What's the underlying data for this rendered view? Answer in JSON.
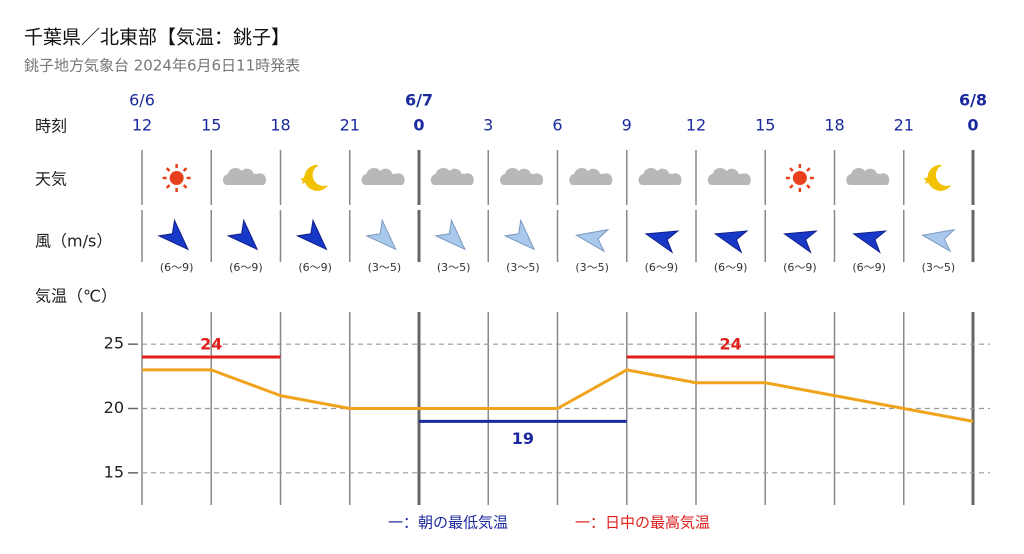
{
  "chart_data": {
    "type": "line",
    "title": "千葉県／北東部【気温：銚子】",
    "subtitle": "銚子地方気象台 2024年6月6日11時発表",
    "row_labels": [
      "時刻",
      "天気",
      "風（m/s）",
      "気温（℃）"
    ],
    "categories": [
      "12",
      "15",
      "18",
      "21",
      "0",
      "3",
      "6",
      "9",
      "12",
      "15",
      "18",
      "21",
      "0"
    ],
    "dates": [
      "6/6",
      null,
      null,
      null,
      "6/7",
      null,
      null,
      null,
      null,
      null,
      null,
      null,
      "6/8"
    ],
    "wind_labels": [
      "(6〜9)",
      "(6〜9)",
      "(6〜9)",
      "(3〜5)",
      "(3〜5)",
      "(3〜5)",
      "(3〜5)",
      "(6〜9)",
      "(6〜9)",
      "(6〜9)",
      "(6〜9)",
      "(3〜5)"
    ],
    "series": [
      {
        "color": "#f0a41e",
        "values": [
          23,
          23,
          21,
          20,
          20,
          20,
          20,
          23,
          22,
          22,
          21,
          20,
          19
        ]
      },
      {
        "name": "一：朝の最低気温",
        "color": "#1c28a0",
        "values": [
          null,
          null,
          null,
          null,
          19,
          19,
          19,
          19,
          null,
          null,
          null,
          null,
          null
        ]
      },
      {
        "name": "一：日中の最高気温",
        "color": "#e0201c",
        "values": [
          24,
          24,
          24,
          null,
          null,
          null,
          null,
          24,
          24,
          24,
          24,
          null,
          null
        ]
      }
    ],
    "ylim": [
      12.5,
      27.5
    ],
    "yticks": [
      15,
      20,
      25
    ],
    "grid": true
  }
}
